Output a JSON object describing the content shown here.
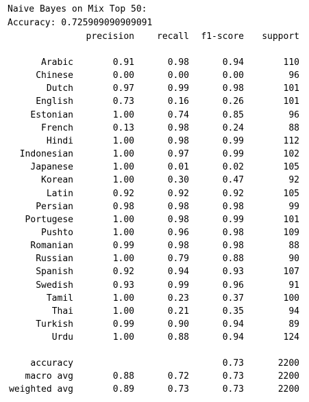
{
  "title_line": "Naive Bayes on Mix Top 50:",
  "accuracy_line": "Accuracy: 0.725909090909091",
  "headers": {
    "precision": "precision",
    "recall": "recall",
    "f1": "f1-score",
    "support": "support"
  },
  "rows": [
    {
      "label": "Arabic",
      "precision": "0.91",
      "recall": "0.98",
      "f1": "0.94",
      "support": "110"
    },
    {
      "label": "Chinese",
      "precision": "0.00",
      "recall": "0.00",
      "f1": "0.00",
      "support": "96"
    },
    {
      "label": "Dutch",
      "precision": "0.97",
      "recall": "0.99",
      "f1": "0.98",
      "support": "101"
    },
    {
      "label": "English",
      "precision": "0.73",
      "recall": "0.16",
      "f1": "0.26",
      "support": "101"
    },
    {
      "label": "Estonian",
      "precision": "1.00",
      "recall": "0.74",
      "f1": "0.85",
      "support": "96"
    },
    {
      "label": "French",
      "precision": "0.13",
      "recall": "0.98",
      "f1": "0.24",
      "support": "88"
    },
    {
      "label": "Hindi",
      "precision": "1.00",
      "recall": "0.98",
      "f1": "0.99",
      "support": "112"
    },
    {
      "label": "Indonesian",
      "precision": "1.00",
      "recall": "0.97",
      "f1": "0.99",
      "support": "102"
    },
    {
      "label": "Japanese",
      "precision": "1.00",
      "recall": "0.01",
      "f1": "0.02",
      "support": "105"
    },
    {
      "label": "Korean",
      "precision": "1.00",
      "recall": "0.30",
      "f1": "0.47",
      "support": "92"
    },
    {
      "label": "Latin",
      "precision": "0.92",
      "recall": "0.92",
      "f1": "0.92",
      "support": "105"
    },
    {
      "label": "Persian",
      "precision": "0.98",
      "recall": "0.98",
      "f1": "0.98",
      "support": "99"
    },
    {
      "label": "Portugese",
      "precision": "1.00",
      "recall": "0.98",
      "f1": "0.99",
      "support": "101"
    },
    {
      "label": "Pushto",
      "precision": "1.00",
      "recall": "0.96",
      "f1": "0.98",
      "support": "109"
    },
    {
      "label": "Romanian",
      "precision": "0.99",
      "recall": "0.98",
      "f1": "0.98",
      "support": "88"
    },
    {
      "label": "Russian",
      "precision": "1.00",
      "recall": "0.79",
      "f1": "0.88",
      "support": "90"
    },
    {
      "label": "Spanish",
      "precision": "0.92",
      "recall": "0.94",
      "f1": "0.93",
      "support": "107"
    },
    {
      "label": "Swedish",
      "precision": "0.93",
      "recall": "0.99",
      "f1": "0.96",
      "support": "91"
    },
    {
      "label": "Tamil",
      "precision": "1.00",
      "recall": "0.23",
      "f1": "0.37",
      "support": "100"
    },
    {
      "label": "Thai",
      "precision": "1.00",
      "recall": "0.21",
      "f1": "0.35",
      "support": "94"
    },
    {
      "label": "Turkish",
      "precision": "0.99",
      "recall": "0.90",
      "f1": "0.94",
      "support": "89"
    },
    {
      "label": "Urdu",
      "precision": "1.00",
      "recall": "0.88",
      "f1": "0.94",
      "support": "124"
    }
  ],
  "summary": [
    {
      "label": "accuracy",
      "precision": "",
      "recall": "",
      "f1": "0.73",
      "support": "2200"
    },
    {
      "label": "macro avg",
      "precision": "0.88",
      "recall": "0.72",
      "f1": "0.73",
      "support": "2200"
    },
    {
      "label": "weighted avg",
      "precision": "0.89",
      "recall": "0.73",
      "f1": "0.73",
      "support": "2200"
    }
  ]
}
